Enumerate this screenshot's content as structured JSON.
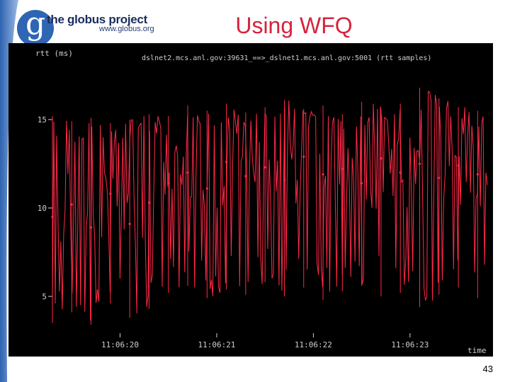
{
  "slide": {
    "title": "Using WFQ",
    "number": "43",
    "logo": {
      "name": "the globus project",
      "url": "www.globus.org",
      "mark": "g"
    }
  },
  "colors": {
    "trace": "#ff2a48",
    "background": "#000000",
    "title": "#d8223d"
  },
  "chart_data": {
    "type": "line",
    "title": "dslnet2.mcs.anl.gov:39631_==>_dslnet1.mcs.anl.gov:5001 (rtt samples)",
    "ylabel": "rtt (ms)",
    "xlabel": "time",
    "ylim": [
      3,
      18
    ],
    "xlim": [
      0,
      4.5
    ],
    "yticks": [
      5,
      10,
      15
    ],
    "ytick_labels": [
      "5",
      "10",
      "15"
    ],
    "xticks": [
      0.7,
      1.7,
      2.7,
      3.7
    ],
    "xtick_labels": [
      "11:06:20",
      "11:06:21",
      "11:06:22",
      "11:06:23"
    ],
    "grid": false,
    "series": [
      {
        "x": [
          0.0,
          0.2,
          0.4,
          0.6,
          0.8,
          1.0,
          1.2,
          1.4,
          1.6,
          1.8,
          2.0,
          2.2,
          2.4,
          2.6,
          2.8,
          3.0,
          3.2,
          3.4,
          3.6,
          3.8,
          4.0,
          4.2,
          4.4
        ],
        "y": [
          9.5,
          10.2,
          8.9,
          10.8,
          9.1,
          10.3,
          11.4,
          12.0,
          11.1,
          12.6,
          11.8,
          12.3,
          11.6,
          12.9,
          11.9,
          12.2,
          11.4,
          12.8,
          12.0,
          12.5,
          11.7,
          12.4,
          11.9
        ],
        "min": [
          3.5,
          4.1,
          3.4,
          4.6,
          3.8,
          4.3,
          5.2,
          5.6,
          4.9,
          5.4,
          5.1,
          5.8,
          5.0,
          5.5,
          4.8,
          5.3,
          5.6,
          5.0,
          5.2,
          4.4,
          5.1,
          5.5,
          4.9
        ],
        "max": [
          15.2,
          14.9,
          15.1,
          14.8,
          15.0,
          15.3,
          15.2,
          15.8,
          15.5,
          15.9,
          15.4,
          15.7,
          16.1,
          15.6,
          15.8,
          15.3,
          16.0,
          15.6,
          15.9,
          16.8,
          16.2,
          15.7,
          15.5
        ]
      }
    ]
  }
}
